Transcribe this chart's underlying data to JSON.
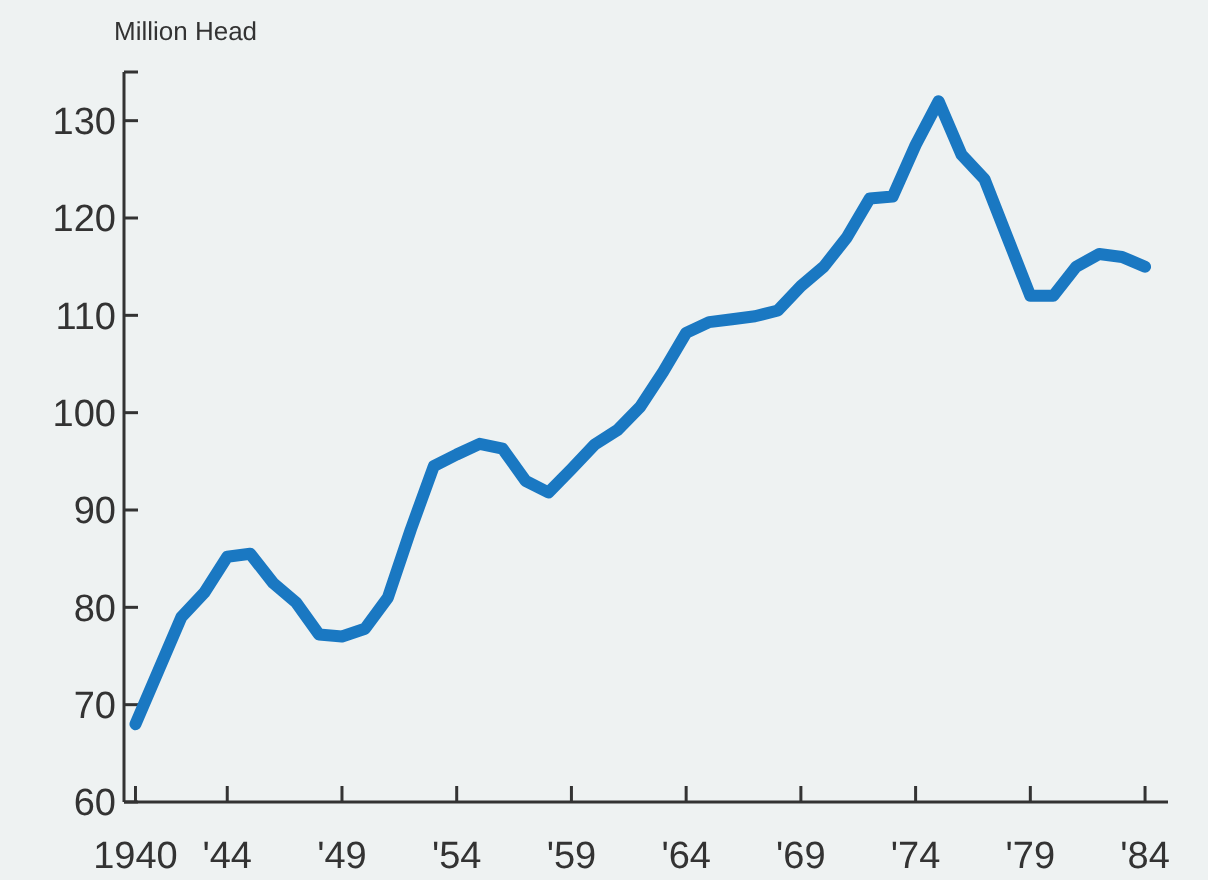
{
  "chart_data": {
    "type": "line",
    "ylabel": "Million Head",
    "x": [
      1940,
      1941,
      1942,
      1943,
      1944,
      1945,
      1946,
      1947,
      1948,
      1949,
      1950,
      1951,
      1952,
      1953,
      1954,
      1955,
      1956,
      1957,
      1958,
      1959,
      1960,
      1961,
      1962,
      1963,
      1964,
      1965,
      1966,
      1967,
      1968,
      1969,
      1970,
      1971,
      1972,
      1973,
      1974,
      1975,
      1976,
      1977,
      1978,
      1979,
      1980,
      1981,
      1982,
      1983,
      1984
    ],
    "series": [
      {
        "color": "#1a78c2",
        "values": [
          68,
          73.5,
          79,
          81.5,
          85.2,
          85.5,
          82.5,
          80.5,
          77.2,
          77,
          77.8,
          81,
          88,
          94.5,
          95.7,
          96.8,
          96.3,
          93,
          91.8,
          94.2,
          96.7,
          98.2,
          100.6,
          104.2,
          108.2,
          109.3,
          109.6,
          109.9,
          110.5,
          113,
          115,
          118,
          122,
          122.2,
          127.5,
          132,
          126.5,
          124,
          118,
          112,
          112,
          115,
          116.3,
          116,
          115
        ]
      }
    ],
    "xlim": [
      1939.5,
      1985
    ],
    "ylim": [
      60,
      135
    ],
    "xticks": [
      {
        "value": 1940,
        "label": "1940"
      },
      {
        "value": 1944,
        "label": "'44"
      },
      {
        "value": 1949,
        "label": "'49"
      },
      {
        "value": 1954,
        "label": "'54"
      },
      {
        "value": 1959,
        "label": "'59"
      },
      {
        "value": 1964,
        "label": "'64"
      },
      {
        "value": 1969,
        "label": "'69"
      },
      {
        "value": 1974,
        "label": "'74"
      },
      {
        "value": 1979,
        "label": "'79"
      },
      {
        "value": 1984,
        "label": "'84"
      }
    ],
    "yticks": [
      60,
      70,
      80,
      90,
      100,
      110,
      120,
      130,
      {
        "value": 135,
        "label": null
      }
    ],
    "marker": "none"
  }
}
